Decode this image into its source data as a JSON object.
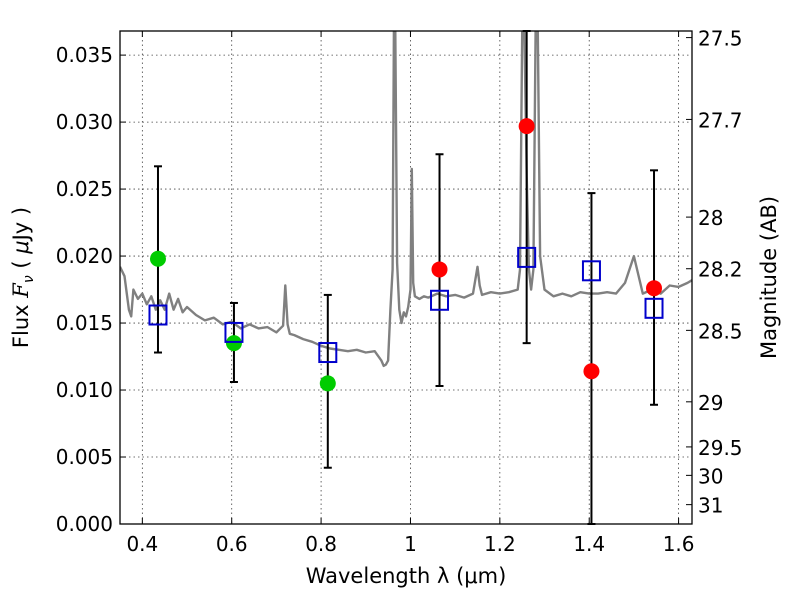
{
  "chart_data": {
    "type": "scatter",
    "xlabel": "Wavelength  λ (μm)",
    "ylabel": "Flux  F_ν  ( μJy )",
    "ylabel_parts": {
      "prefix": "Flux  ",
      "symbol": "F",
      "subscript": "ν",
      "paren_open": "  ( ",
      "unit_greek": "μ",
      "unit": "Jy )"
    },
    "y2label": "Magnitude (AB)",
    "xlim": [
      0.35,
      1.63
    ],
    "ylim": [
      0.0,
      0.0368
    ],
    "grid": true,
    "x_ticks": [
      0.4,
      0.6,
      0.8,
      1.0,
      1.2,
      1.4,
      1.6
    ],
    "x_tick_labels": [
      "0.4",
      "0.6",
      "0.8",
      "1",
      "1.2",
      "1.4",
      "1.6"
    ],
    "y_ticks": [
      0.0,
      0.005,
      0.01,
      0.015,
      0.02,
      0.025,
      0.03,
      0.035
    ],
    "y_tick_labels": [
      "0.000",
      "0.005",
      "0.010",
      "0.015",
      "0.020",
      "0.025",
      "0.030",
      "0.035"
    ],
    "mag_ticks": [
      "27.5",
      "27.7",
      "28",
      "28.2",
      "28.5",
      "29",
      "29.5",
      "30",
      "31"
    ],
    "series": [
      {
        "kind": "line",
        "color": "#808080",
        "x": [
          0.35,
          0.36,
          0.37,
          0.375,
          0.38,
          0.39,
          0.4,
          0.41,
          0.42,
          0.43,
          0.44,
          0.45,
          0.46,
          0.47,
          0.48,
          0.49,
          0.5,
          0.52,
          0.54,
          0.56,
          0.58,
          0.6,
          0.62,
          0.64,
          0.66,
          0.68,
          0.7,
          0.715,
          0.72,
          0.725,
          0.73,
          0.74,
          0.76,
          0.78,
          0.8,
          0.82,
          0.84,
          0.86,
          0.88,
          0.9,
          0.92,
          0.935,
          0.94,
          0.945,
          0.95,
          0.955,
          0.96,
          0.963,
          0.966,
          0.97,
          0.975,
          0.98,
          0.985,
          0.99,
          0.995,
          1.0,
          1.003,
          1.006,
          1.01,
          1.02,
          1.03,
          1.04,
          1.06,
          1.08,
          1.1,
          1.12,
          1.14,
          1.15,
          1.155,
          1.16,
          1.18,
          1.2,
          1.22,
          1.24,
          1.245,
          1.25,
          1.255,
          1.26,
          1.265,
          1.27,
          1.275,
          1.28,
          1.285,
          1.29,
          1.3,
          1.32,
          1.34,
          1.36,
          1.38,
          1.4,
          1.42,
          1.44,
          1.46,
          1.48,
          1.5,
          1.52,
          1.54,
          1.56,
          1.58,
          1.6,
          1.62,
          1.63
        ],
        "y": [
          0.0192,
          0.0185,
          0.016,
          0.0155,
          0.0175,
          0.0168,
          0.0172,
          0.0164,
          0.017,
          0.016,
          0.0167,
          0.016,
          0.0172,
          0.016,
          0.0168,
          0.0158,
          0.0162,
          0.0156,
          0.0152,
          0.0154,
          0.0149,
          0.0151,
          0.0146,
          0.0149,
          0.0146,
          0.0147,
          0.0143,
          0.0148,
          0.0178,
          0.0149,
          0.0142,
          0.0141,
          0.0138,
          0.0136,
          0.0133,
          0.0131,
          0.013,
          0.0129,
          0.013,
          0.0128,
          0.0129,
          0.0122,
          0.0118,
          0.0119,
          0.0122,
          0.016,
          0.019,
          0.0368,
          0.0368,
          0.0195,
          0.016,
          0.015,
          0.0158,
          0.0155,
          0.0162,
          0.0175,
          0.0265,
          0.018,
          0.017,
          0.0168,
          0.017,
          0.0169,
          0.0172,
          0.017,
          0.0171,
          0.0169,
          0.0172,
          0.0192,
          0.0178,
          0.0171,
          0.0173,
          0.0172,
          0.0173,
          0.0175,
          0.019,
          0.0368,
          0.0368,
          0.026,
          0.019,
          0.0175,
          0.019,
          0.0368,
          0.0368,
          0.02,
          0.0175,
          0.017,
          0.0172,
          0.017,
          0.0173,
          0.0172,
          0.0172,
          0.0173,
          0.0172,
          0.018,
          0.02,
          0.0172,
          0.0175,
          0.0172,
          0.0178,
          0.0177,
          0.018,
          0.0182
        ]
      },
      {
        "kind": "points",
        "color": "#00cc00",
        "x": [
          0.435,
          0.605,
          0.815
        ],
        "y": [
          0.0198,
          0.0135,
          0.0105
        ]
      },
      {
        "kind": "points",
        "color": "#ff0000",
        "x": [
          1.065,
          1.26,
          1.405,
          1.545
        ],
        "y": [
          0.019,
          0.0297,
          0.0114,
          0.0176
        ]
      },
      {
        "kind": "squares",
        "color": "#0000cc",
        "x": [
          0.435,
          0.605,
          0.815,
          1.065,
          1.26,
          1.405,
          1.545
        ],
        "y": [
          0.0156,
          0.0143,
          0.0128,
          0.0167,
          0.0199,
          0.0189,
          0.0161
        ],
        "yerr_low": [
          0.0128,
          0.0106,
          0.0042,
          0.0103,
          0.0135,
          0.0,
          0.0089
        ],
        "yerr_high": [
          0.0267,
          0.0165,
          0.0171,
          0.0276,
          0.0368,
          0.0247,
          0.0264
        ]
      }
    ]
  }
}
